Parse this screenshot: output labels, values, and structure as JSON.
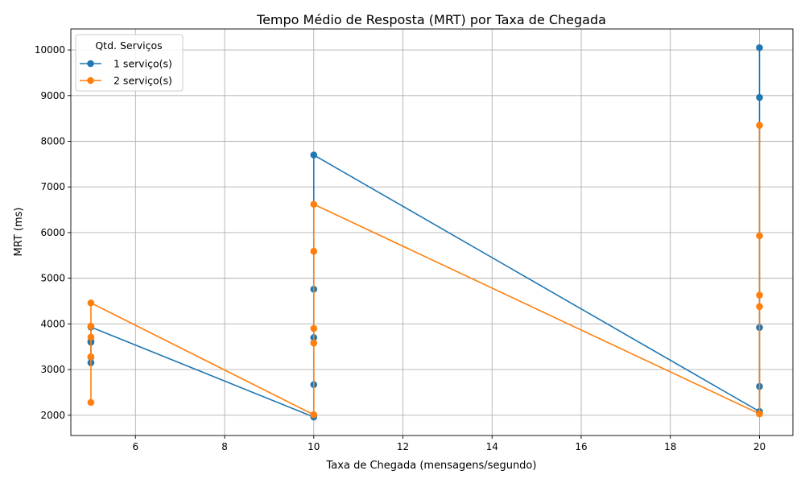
{
  "chart_data": {
    "type": "line",
    "title": "Tempo Médio de Resposta (MRT) por Taxa de Chegada",
    "xlabel": "Taxa de Chegada (mensagens/segundo)",
    "ylabel": "MRT (ms)",
    "xlim": [
      4.55,
      20.75
    ],
    "ylim": [
      1555,
      10460
    ],
    "xticks": [
      6,
      8,
      10,
      12,
      14,
      16,
      18,
      20
    ],
    "yticks": [
      2000,
      3000,
      4000,
      5000,
      6000,
      7000,
      8000,
      9000,
      10000
    ],
    "grid": true,
    "legend": {
      "title": "Qtd. Serviços",
      "placement": "top-left"
    },
    "series": [
      {
        "name": "1 serviço(s)",
        "color": "#1f77b4",
        "x": [
          5,
          5,
          5,
          5,
          5,
          10,
          10,
          10,
          10,
          10,
          20,
          20,
          20,
          20,
          20
        ],
        "y": [
          3150,
          3270,
          3600,
          3620,
          3930,
          1960,
          2670,
          3700,
          4760,
          7700,
          2080,
          2630,
          3920,
          8960,
          10050
        ]
      },
      {
        "name": "2 serviço(s)",
        "color": "#ff7f0e",
        "x": [
          5,
          5,
          5,
          5,
          5,
          10,
          10,
          10,
          10,
          10,
          20,
          20,
          20,
          20,
          20
        ],
        "y": [
          2280,
          3280,
          3710,
          3950,
          4460,
          2010,
          3580,
          3900,
          5590,
          6620,
          2030,
          4380,
          4630,
          5930,
          8350
        ]
      }
    ]
  }
}
